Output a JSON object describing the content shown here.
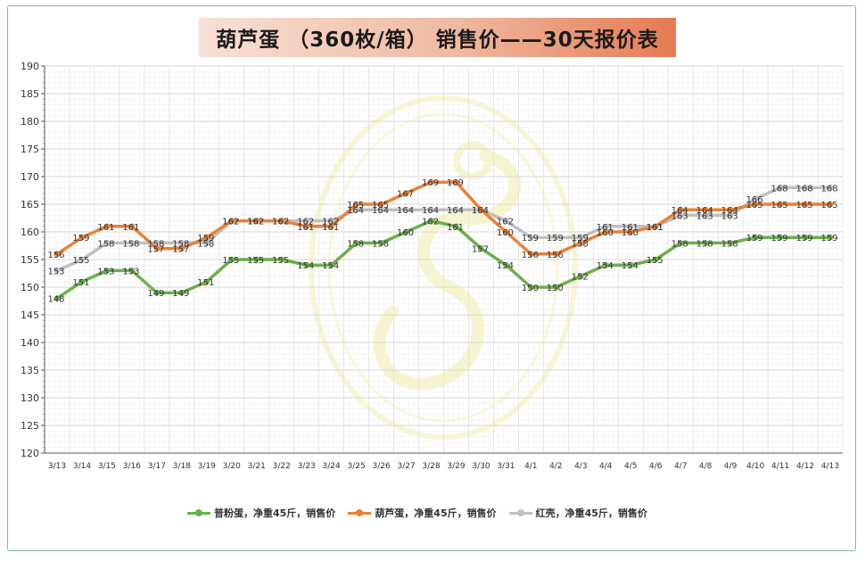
{
  "title": "葫芦蛋  （360枚/箱）  销售价——30天报价表",
  "chart_data": {
    "type": "line",
    "categories": [
      "3/13",
      "3/14",
      "3/15",
      "3/16",
      "3/17",
      "3/18",
      "3/19",
      "3/20",
      "3/21",
      "3/22",
      "3/23",
      "3/24",
      "3/25",
      "3/26",
      "3/27",
      "3/28",
      "3/29",
      "3/30",
      "3/31",
      "4/1",
      "4/2",
      "4/3",
      "4/4",
      "4/5",
      "4/6",
      "4/7",
      "4/8",
      "4/9",
      "4/10",
      "4/11",
      "4/12",
      "4/13"
    ],
    "ylim": [
      120,
      190
    ],
    "yticks": [
      "120",
      "125",
      "130",
      "135",
      "140",
      "145",
      "150",
      "155",
      "160",
      "165",
      "170",
      "175",
      "180",
      "185",
      "190"
    ],
    "grid": true,
    "legend_position": "bottom",
    "series": [
      {
        "name": "普粉蛋，净重45斤，销售价",
        "color": "#6ab04c",
        "values": [
          148,
          151,
          153,
          153,
          149,
          149,
          151,
          155,
          155,
          155,
          154,
          154,
          158,
          158,
          160,
          162,
          161,
          157,
          154,
          150,
          150,
          152,
          154,
          154,
          155,
          158,
          158,
          158,
          159,
          159,
          159,
          159
        ]
      },
      {
        "name": "葫芦蛋，净重45斤，销售价",
        "color": "#e8823a",
        "values": [
          156,
          159,
          161,
          161,
          157,
          157,
          159,
          162,
          162,
          162,
          161,
          161,
          165,
          165,
          167,
          169,
          169,
          164,
          160,
          156,
          156,
          158,
          160,
          160,
          161,
          164,
          164,
          164,
          165,
          165,
          165,
          165
        ]
      },
      {
        "name": "红壳，净重45斤，销售价",
        "color": "#c0c0c0",
        "values": [
          153,
          155,
          158,
          158,
          158,
          158,
          158,
          162,
          162,
          162,
          162,
          162,
          164,
          164,
          164,
          164,
          164,
          164,
          162,
          159,
          159,
          159,
          161,
          161,
          161,
          163,
          163,
          163,
          166,
          168,
          168,
          168
        ]
      }
    ]
  }
}
